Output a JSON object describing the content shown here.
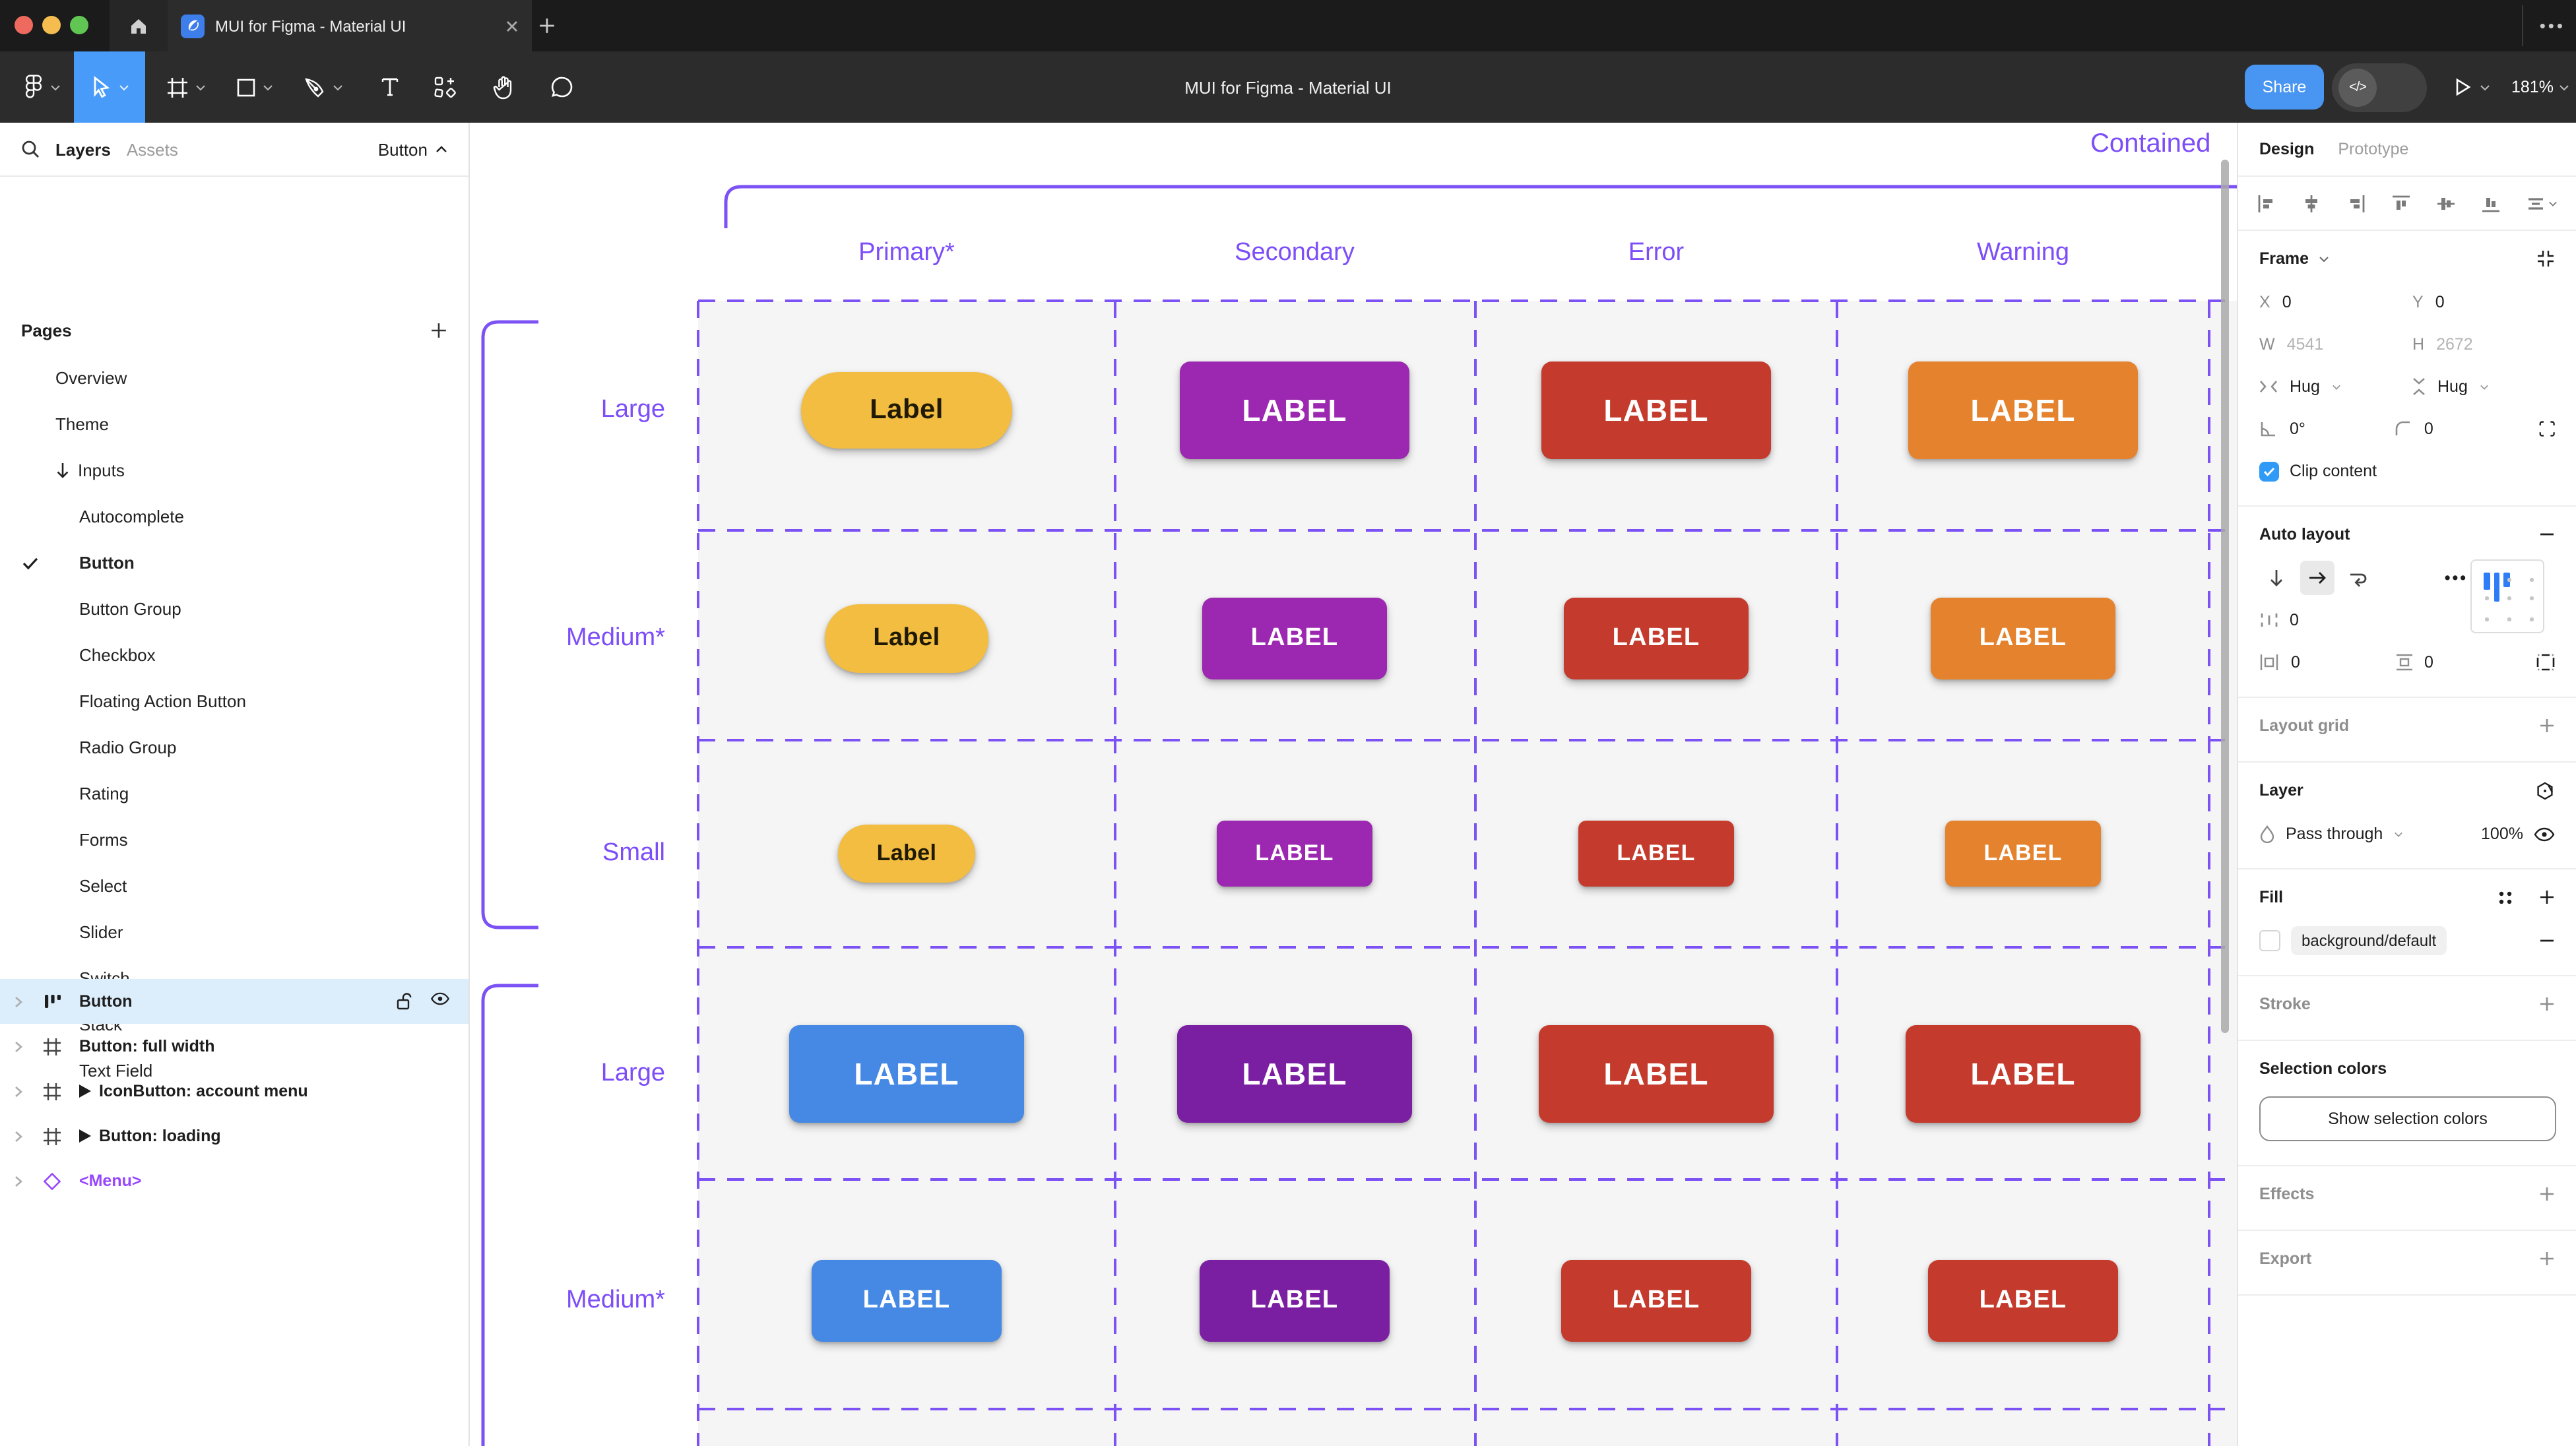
{
  "window": {
    "tab_title": "MUI for Figma - Material UI",
    "toolbar_title": "MUI for Figma - Material UI",
    "share_label": "Share",
    "dev_toggle_glyph": "</>",
    "zoom_level": "181%",
    "tab_more_glyph": "•••"
  },
  "colors": {
    "accent_purple": "#7C4DF8",
    "dash_purple": "#7C52F5",
    "figma_blue": "#489BF8",
    "selection_row": "#DCEDFB",
    "cell_gray": "#F5F5F5",
    "toolbar_dark": "#2C2C2C",
    "tabbar_dark": "#1B1B1B"
  },
  "sidebar": {
    "tabs": {
      "layers": "Layers",
      "assets": "Assets"
    },
    "page_selector": "Button",
    "pages_header": "Pages",
    "pages": [
      {
        "label": "Overview",
        "indent": 1
      },
      {
        "label": "Theme",
        "indent": 1
      },
      {
        "label": "Inputs",
        "indent": 1,
        "prefix": "arrow-down"
      },
      {
        "label": "Autocomplete",
        "indent": 2
      },
      {
        "label": "Button",
        "indent": 2,
        "checked": true,
        "bold": true
      },
      {
        "label": "Button Group",
        "indent": 2
      },
      {
        "label": "Checkbox",
        "indent": 2
      },
      {
        "label": "Floating Action Button",
        "indent": 2
      },
      {
        "label": "Radio Group",
        "indent": 2
      },
      {
        "label": "Rating",
        "indent": 2
      },
      {
        "label": "Forms",
        "indent": 2
      },
      {
        "label": "Select",
        "indent": 2
      },
      {
        "label": "Slider",
        "indent": 2
      },
      {
        "label": "Switch",
        "indent": 2
      },
      {
        "label": "Stack",
        "indent": 2
      },
      {
        "label": "Text Field",
        "indent": 2
      }
    ],
    "layers": [
      {
        "label": "Button",
        "icon": "auto-layout",
        "selected": true
      },
      {
        "label": "Button: full width",
        "icon": "frame"
      },
      {
        "label": "IconButton: account menu",
        "icon": "frame",
        "play": true
      },
      {
        "label": "Button: loading",
        "icon": "frame",
        "play": true
      },
      {
        "label": "<Menu>",
        "icon": "instance",
        "purple": true
      }
    ]
  },
  "canvas": {
    "frame_label": "Contained",
    "column_headers": [
      "Primary*",
      "Secondary",
      "Error",
      "Warning"
    ],
    "row_labels": [
      "Large",
      "Medium*",
      "Small",
      "Large",
      "Medium*"
    ],
    "rows": [
      {
        "cells": [
          {
            "variant": "pill",
            "color": "#F2BD40",
            "text_color": "#201A05",
            "label": "Label"
          },
          {
            "variant": "rect",
            "color": "#9C27B0",
            "label": "LABEL"
          },
          {
            "variant": "rect",
            "color": "#C43B2D",
            "label": "LABEL"
          },
          {
            "variant": "rect",
            "color": "#E5822E",
            "label": "LABEL"
          }
        ]
      },
      {
        "cells": [
          {
            "variant": "pill",
            "color": "#F2BD40",
            "text_color": "#201A05",
            "label": "Label"
          },
          {
            "variant": "rect",
            "color": "#9C27B0",
            "label": "LABEL"
          },
          {
            "variant": "rect",
            "color": "#C43B2D",
            "label": "LABEL"
          },
          {
            "variant": "rect",
            "color": "#E5822E",
            "label": "LABEL"
          }
        ]
      },
      {
        "cells": [
          {
            "variant": "pill",
            "color": "#F2BD40",
            "text_color": "#201A05",
            "label": "Label"
          },
          {
            "variant": "rect",
            "color": "#9C27B0",
            "label": "LABEL"
          },
          {
            "variant": "rect",
            "color": "#C43B2D",
            "label": "LABEL"
          },
          {
            "variant": "rect",
            "color": "#E5822E",
            "label": "LABEL"
          }
        ]
      },
      {
        "cells": [
          {
            "variant": "rect",
            "color": "#4589E4",
            "label": "LABEL"
          },
          {
            "variant": "rect",
            "color": "#7B1FA2",
            "label": "LABEL"
          },
          {
            "variant": "rect",
            "color": "#C43B2D",
            "label": "LABEL"
          },
          {
            "variant": "rect",
            "color": "#C43B2D",
            "label": "LABEL"
          }
        ]
      },
      {
        "cells": [
          {
            "variant": "rect",
            "color": "#4589E4",
            "label": "LABEL"
          },
          {
            "variant": "rect",
            "color": "#7B1FA2",
            "label": "LABEL"
          },
          {
            "variant": "rect",
            "color": "#C43B2D",
            "label": "LABEL"
          },
          {
            "variant": "rect",
            "color": "#C43B2D",
            "label": "LABEL"
          }
        ]
      }
    ]
  },
  "right_panel": {
    "tabs": {
      "design": "Design",
      "prototype": "Prototype"
    },
    "frame": {
      "header": "Frame",
      "x_label": "X",
      "x_value": "0",
      "y_label": "Y",
      "y_value": "0",
      "w_label": "W",
      "w_value": "4541",
      "h_label": "H",
      "h_value": "2672",
      "h_sizing": "Hug",
      "v_sizing": "Hug",
      "rotation": "0°",
      "corner_radius": "0",
      "clip_label": "Clip content"
    },
    "auto_layout": {
      "header": "Auto layout",
      "gap": "0",
      "padding_h": "0",
      "padding_v": "0"
    },
    "layout_grid": {
      "header": "Layout grid"
    },
    "layer": {
      "header": "Layer",
      "blend_mode": "Pass through",
      "opacity": "100%"
    },
    "fill": {
      "header": "Fill",
      "token": "background/default"
    },
    "stroke": {
      "header": "Stroke"
    },
    "selection_colors": {
      "header": "Selection colors",
      "button": "Show selection colors"
    },
    "effects": {
      "header": "Effects"
    },
    "export": {
      "header": "Export"
    }
  }
}
